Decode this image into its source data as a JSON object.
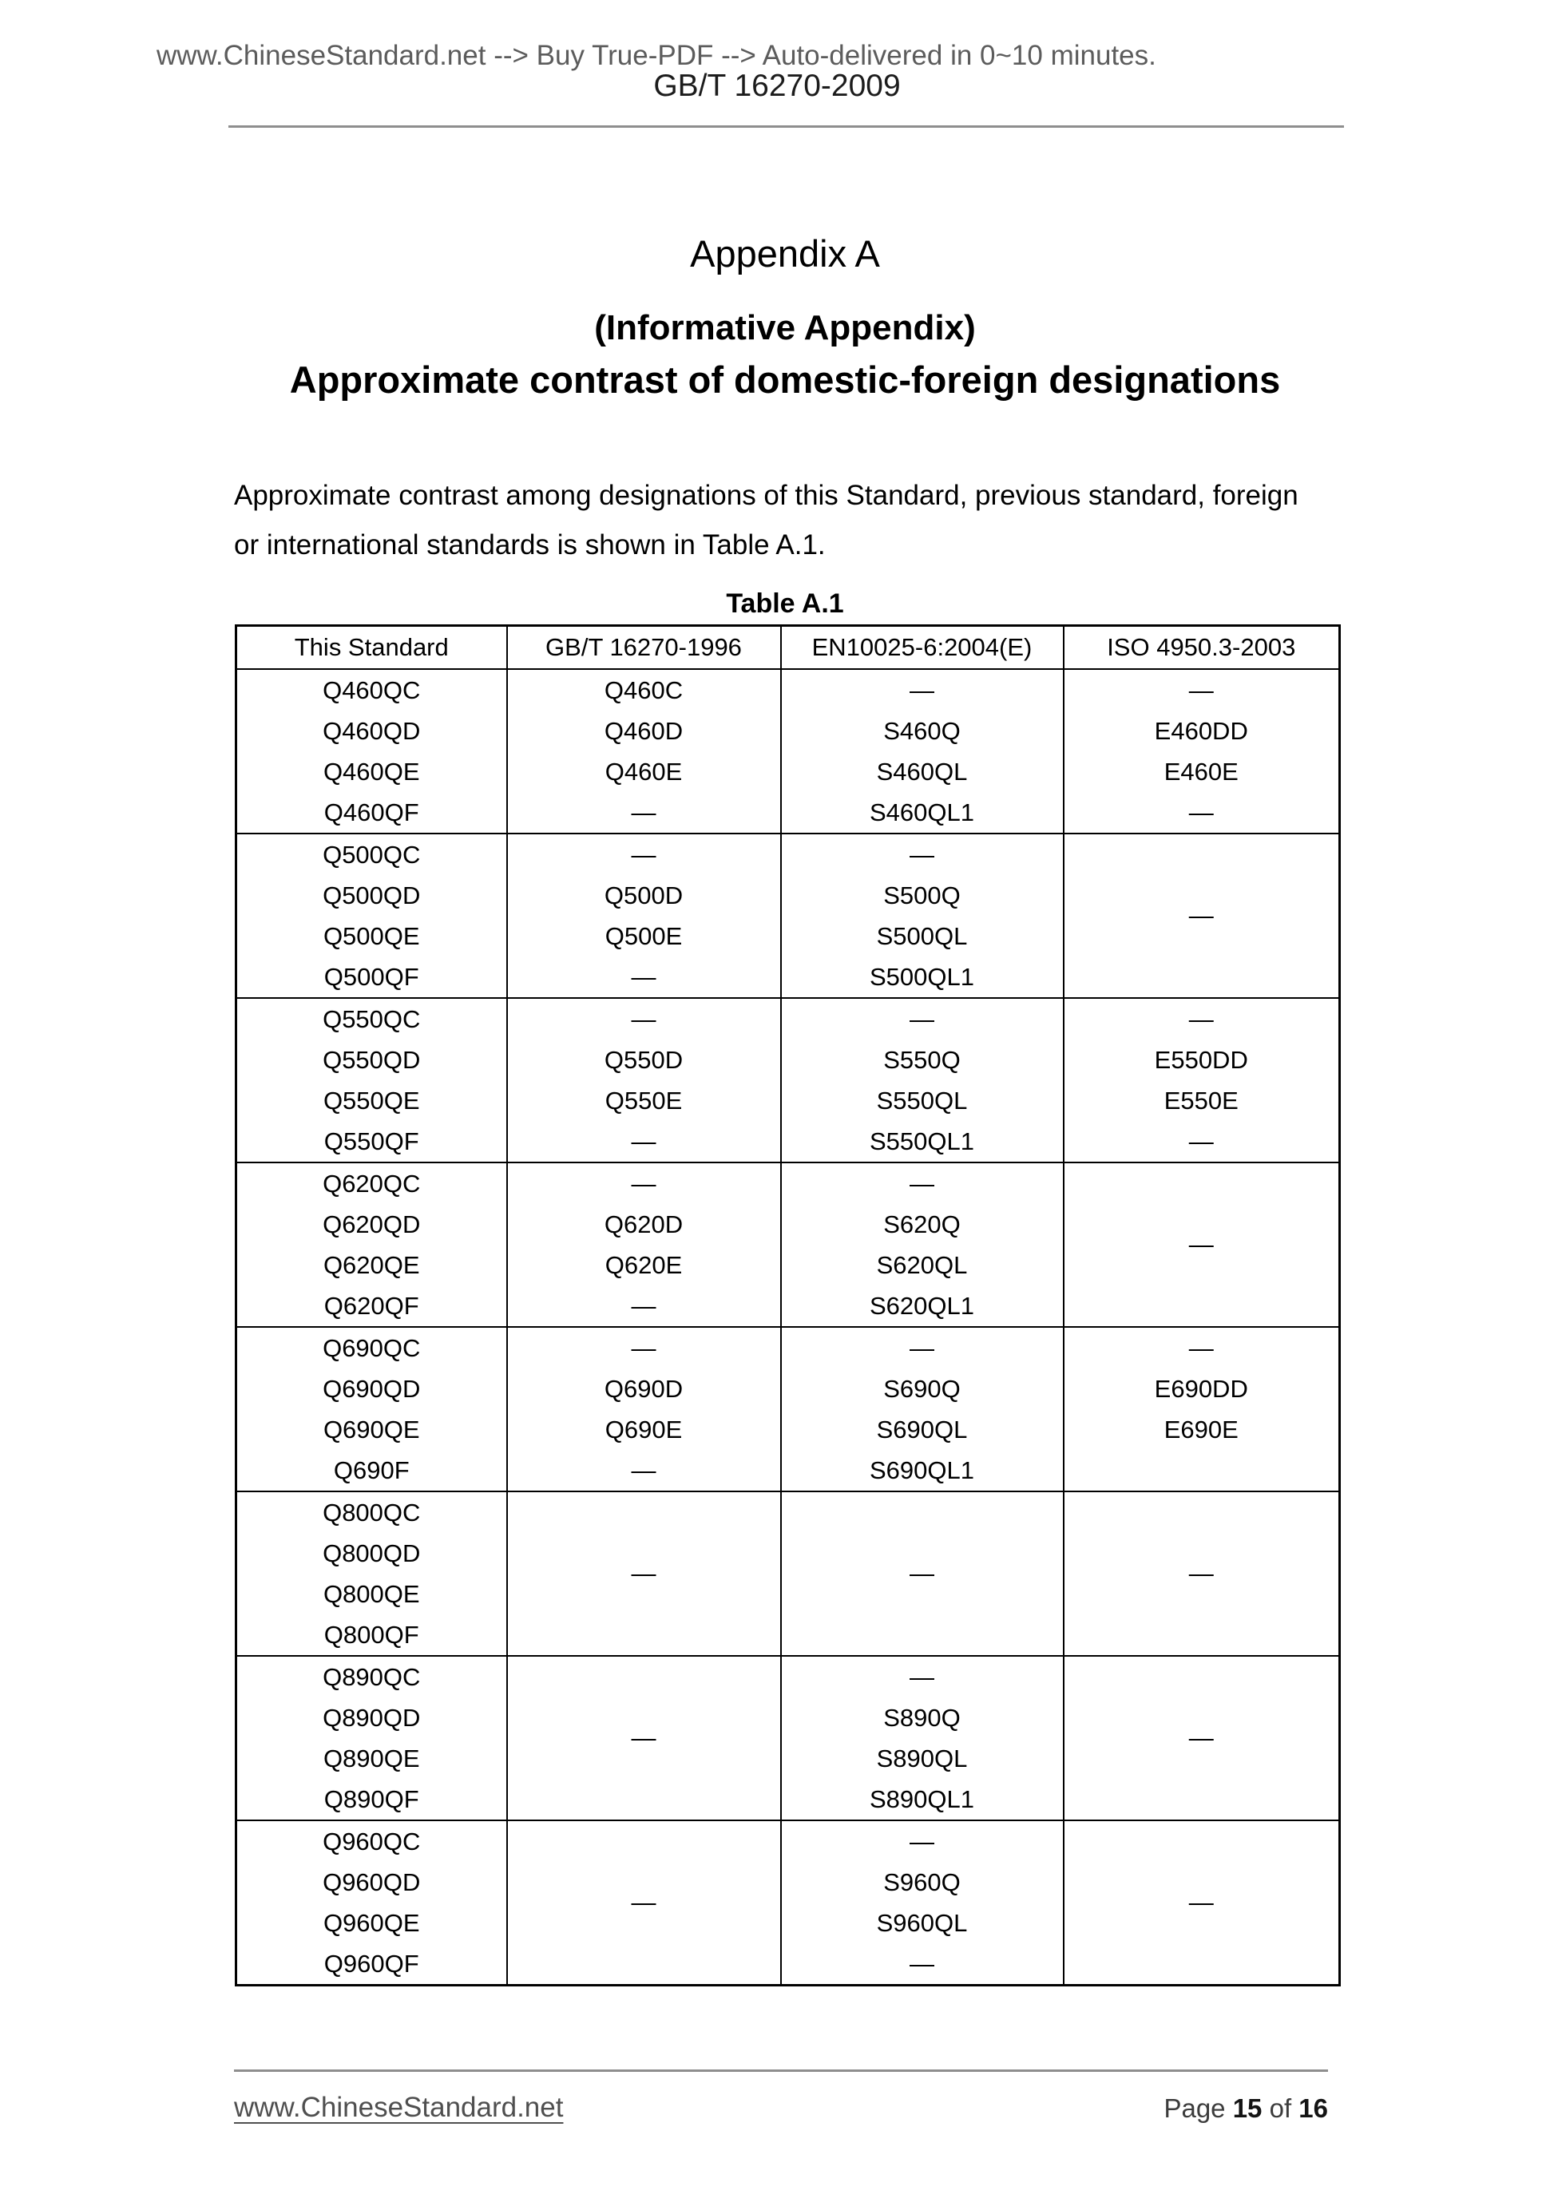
{
  "header": {
    "marketing_text": "www.ChineseStandard.net --> Buy True-PDF --> Auto-delivered in 0~10 minutes.",
    "doc_number": "GB/T 16270-2009"
  },
  "titles": {
    "appendix": "Appendix A",
    "informative": "(Informative Appendix)",
    "heading": "Approximate contrast of domestic-foreign designations"
  },
  "paragraph_lines": [
    "Approximate contrast among designations of this Standard, previous standard, foreign",
    "or international standards is shown in Table A.1."
  ],
  "table": {
    "caption": "Table A.1",
    "columns": [
      "This Standard",
      "GB/T 16270-1996",
      "EN10025-6:2004(E)",
      "ISO 4950.3-2003"
    ],
    "groups": [
      [
        [
          "Q460QC",
          "Q460QD",
          "Q460QE",
          "Q460QF"
        ],
        [
          "Q460C",
          "Q460D",
          "Q460E",
          "—"
        ],
        [
          "—",
          "S460Q",
          "S460QL",
          "S460QL1"
        ],
        [
          "—",
          "E460DD",
          "E460E",
          "—"
        ]
      ],
      [
        [
          "Q500QC",
          "Q500QD",
          "Q500QE",
          "Q500QF"
        ],
        [
          "—",
          "Q500D",
          "Q500E",
          "—"
        ],
        [
          "—",
          "S500Q",
          "S500QL",
          "S500QL1"
        ],
        "—"
      ],
      [
        [
          "Q550QC",
          "Q550QD",
          "Q550QE",
          "Q550QF"
        ],
        [
          "—",
          "Q550D",
          "Q550E",
          "—"
        ],
        [
          "—",
          "S550Q",
          "S550QL",
          "S550QL1"
        ],
        [
          "—",
          "E550DD",
          "E550E",
          "—"
        ]
      ],
      [
        [
          "Q620QC",
          "Q620QD",
          "Q620QE",
          "Q620QF"
        ],
        [
          "—",
          "Q620D",
          "Q620E",
          "—"
        ],
        [
          "—",
          "S620Q",
          "S620QL",
          "S620QL1"
        ],
        "—"
      ],
      [
        [
          "Q690QC",
          "Q690QD",
          "Q690QE",
          "Q690F"
        ],
        [
          "—",
          "Q690D",
          "Q690E",
          "—"
        ],
        [
          "—",
          "S690Q",
          "S690QL",
          "S690QL1"
        ],
        [
          "—",
          "E690DD",
          "E690E",
          ""
        ]
      ],
      [
        [
          "Q800QC",
          "Q800QD",
          "Q800QE",
          "Q800QF"
        ],
        "—",
        "—",
        "—"
      ],
      [
        [
          "Q890QC",
          "Q890QD",
          "Q890QE",
          "Q890QF"
        ],
        "—",
        [
          "—",
          "S890Q",
          "S890QL",
          "S890QL1"
        ],
        "—"
      ],
      [
        [
          "Q960QC",
          "Q960QD",
          "Q960QE",
          "Q960QF"
        ],
        "—",
        [
          "—",
          "S960Q",
          "S960QL",
          "—"
        ],
        "—"
      ]
    ]
  },
  "footer": {
    "site": "www.ChineseStandard.net",
    "page_label": "Page ",
    "page_current": "15",
    "of_label": " of ",
    "page_total": "16"
  }
}
